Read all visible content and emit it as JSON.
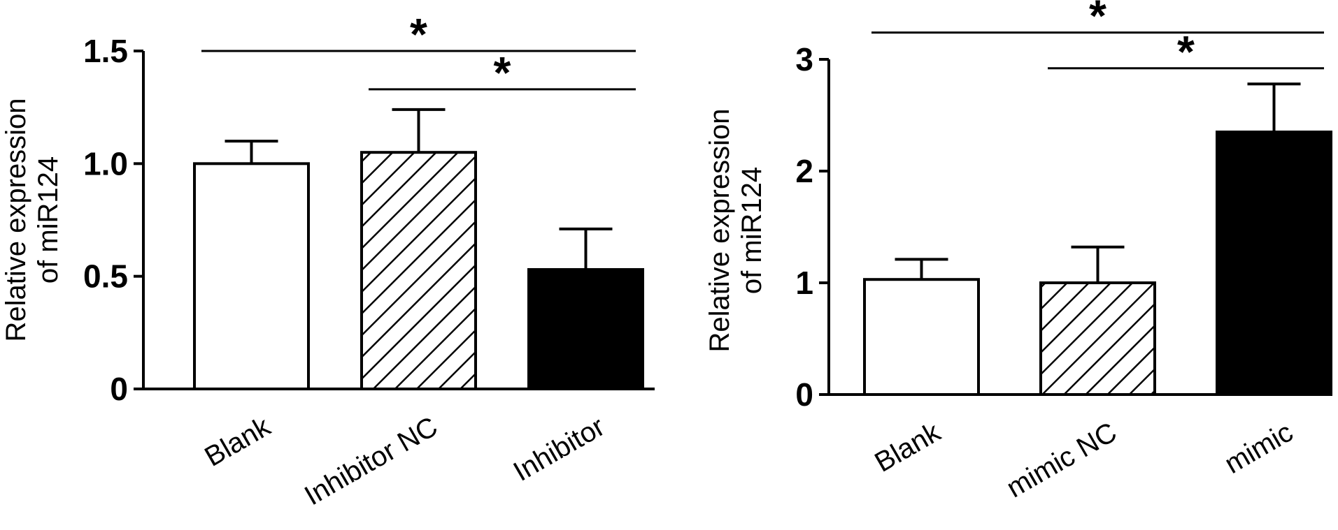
{
  "chart_data": [
    {
      "type": "bar",
      "title": "",
      "xlabel": "",
      "ylabel": "Relative expression of miR124",
      "ylabel_lines": [
        "Relative expression",
        "of miR124"
      ],
      "ylim": [
        0,
        1.5
      ],
      "yticks": [
        0,
        0.5,
        1.0,
        1.5
      ],
      "ytick_labels": [
        "0",
        "0.5",
        "1.0",
        "1.5"
      ],
      "categories": [
        "Blank",
        "Inhibitor NC",
        "Inhibitor"
      ],
      "values": [
        1.0,
        1.05,
        0.53
      ],
      "errors": [
        0.1,
        0.19,
        0.18
      ],
      "fills": [
        "white",
        "hatched",
        "black"
      ],
      "significance": [
        {
          "from": 0,
          "to": 2,
          "y": 1.5,
          "label": "*"
        },
        {
          "from": 1,
          "to": 2,
          "y": 1.33,
          "label": "*"
        }
      ],
      "grid": false
    },
    {
      "type": "bar",
      "title": "",
      "xlabel": "",
      "ylabel": "Relative expression of miR124",
      "ylabel_lines": [
        "Relative expression",
        "of miR124"
      ],
      "ylim": [
        0,
        3
      ],
      "yticks": [
        0,
        1,
        2,
        3
      ],
      "ytick_labels": [
        "0",
        "1",
        "2",
        "3"
      ],
      "categories": [
        "Blank",
        "mimic NC",
        "mimic"
      ],
      "values": [
        1.03,
        1.0,
        2.35
      ],
      "errors": [
        0.18,
        0.32,
        0.43
      ],
      "fills": [
        "white",
        "hatched",
        "black"
      ],
      "significance": [
        {
          "from": 0,
          "to": 2,
          "y": 3.24,
          "label": "*"
        },
        {
          "from": 1,
          "to": 2,
          "y": 2.92,
          "label": "*"
        }
      ],
      "grid": false
    }
  ]
}
